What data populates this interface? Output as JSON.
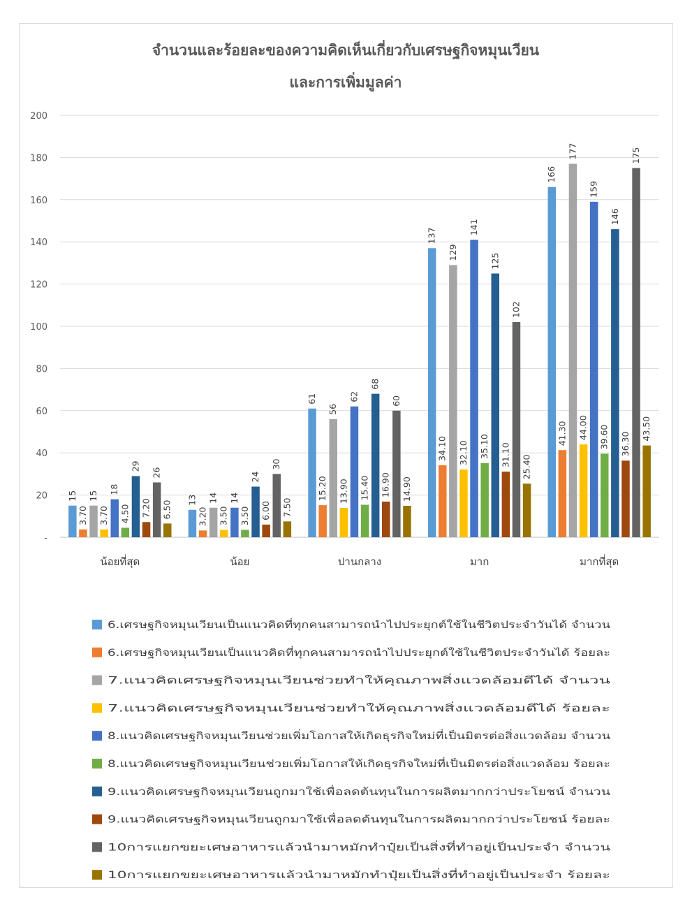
{
  "chart_data": {
    "type": "bar",
    "title": "จำนวนและร้อยละของความคิดเห็นเกี่ยวกับเศรษฐกิจหมุนเวียน และการเพิ่มมูลค่า",
    "title_lines": [
      "จำนวนและร้อยละของความคิดเห็นเกี่ยวกับเศรษฐกิจหมุนเวียน",
      "และการเพิ่มมูลค่า"
    ],
    "categories": [
      "น้อยที่สุด",
      "น้อย",
      "ปานกลาง",
      "มาก",
      "มากที่สุด"
    ],
    "ylim": [
      0,
      200
    ],
    "yticks": [
      0,
      20,
      40,
      60,
      80,
      100,
      120,
      140,
      160,
      180,
      200
    ],
    "ytick_labels": [
      "-",
      "20",
      "40",
      "60",
      "80",
      "100",
      "120",
      "140",
      "160",
      "180",
      "200"
    ],
    "grid": true,
    "legend_position": "bottom",
    "series": [
      {
        "name": "6.เศรษฐกิจหมุนเวียนเป็นแนวคิดที่ทุกคนสามารถนำไปประยุกต์ใช้ในชีวิตประจำวันได้ จำนวน",
        "color": "#5b9bd5",
        "values": [
          15,
          13,
          61,
          137,
          166
        ],
        "labels": [
          "15",
          "13",
          "61",
          "137",
          "166"
        ]
      },
      {
        "name": "6.เศรษฐกิจหมุนเวียนเป็นแนวคิดที่ทุกคนสามารถนำไปประยุกต์ใช้ในชีวิตประจำวันได้ ร้อยละ",
        "color": "#ed7d31",
        "values": [
          3.7,
          3.2,
          15.2,
          34.1,
          41.3
        ],
        "labels": [
          "3.70",
          "3.20",
          "15.20",
          "34.10",
          "41.30"
        ]
      },
      {
        "name": "7.แนวคิดเศรษฐกิจหมุนเวียนช่วยทำให้คุณภาพสิ่งแวดล้อมดีได้ จำนวน",
        "color": "#a5a5a5",
        "values": [
          15,
          14,
          56,
          129,
          177
        ],
        "labels": [
          "15",
          "14",
          "56",
          "129",
          "177"
        ]
      },
      {
        "name": "7.แนวคิดเศรษฐกิจหมุนเวียนช่วยทำให้คุณภาพสิ่งแวดล้อมดีได้ ร้อยละ",
        "color": "#ffc000",
        "values": [
          3.7,
          3.5,
          13.9,
          32.1,
          44.0
        ],
        "labels": [
          "3.70",
          "3.50",
          "13.90",
          "32.10",
          "44.00"
        ]
      },
      {
        "name": "8.แนวคิดเศรษฐกิจหมุนเวียนช่วยเพิ่มโอกาสให้เกิดธุรกิจใหม่ที่เป็นมิตรต่อสิ่งแวดล้อม จำนวน",
        "color": "#4472c4",
        "values": [
          18,
          14,
          62,
          141,
          159
        ],
        "labels": [
          "18",
          "14",
          "62",
          "141",
          "159"
        ]
      },
      {
        "name": "8.แนวคิดเศรษฐกิจหมุนเวียนช่วยเพิ่มโอกาสให้เกิดธุรกิจใหม่ที่เป็นมิตรต่อสิ่งแวดล้อม ร้อยละ",
        "color": "#70ad47",
        "values": [
          4.5,
          3.5,
          15.4,
          35.1,
          39.6
        ],
        "labels": [
          "4.50",
          "3.50",
          "15.40",
          "35.10",
          "39.60"
        ]
      },
      {
        "name": "9.แนวคิดเศรษฐกิจหมุนเวียนถูกมาใช้เพื่อลดต้นทุนในการผลิตมากกว่าประโยชน์ จำนวน",
        "color": "#255e91",
        "values": [
          29,
          24,
          68,
          125,
          146
        ],
        "labels": [
          "29",
          "24",
          "68",
          "125",
          "146"
        ]
      },
      {
        "name": "9.แนวคิดเศรษฐกิจหมุนเวียนถูกมาใช้เพื่อลดต้นทุนในการผลิตมากกว่าประโยชน์ ร้อยละ",
        "color": "#9e480e",
        "values": [
          7.2,
          6.0,
          16.9,
          31.1,
          36.3
        ],
        "labels": [
          "7.20",
          "6.00",
          "16.90",
          "31.10",
          "36.30"
        ]
      },
      {
        "name": "10การแยกขยะเศษอาหารแล้วนำมาหมักทำปุ๋ยเป็นสิ่งที่ทำอยู่เป็นประจำ จำนวน",
        "color": "#636363",
        "values": [
          26,
          30,
          60,
          102,
          175
        ],
        "labels": [
          "26",
          "30",
          "60",
          "102",
          "175"
        ]
      },
      {
        "name": "10การแยกขยะเศษอาหารแล้วนำมาหมักทำปุ๋ยเป็นสิ่งที่ทำอยู่เป็นประจำ ร้อยละ",
        "color": "#997300",
        "values": [
          6.5,
          7.5,
          14.9,
          25.4,
          43.5
        ],
        "labels": [
          "6.50",
          "7.50",
          "14.90",
          "25.40",
          "43.50"
        ]
      }
    ]
  }
}
